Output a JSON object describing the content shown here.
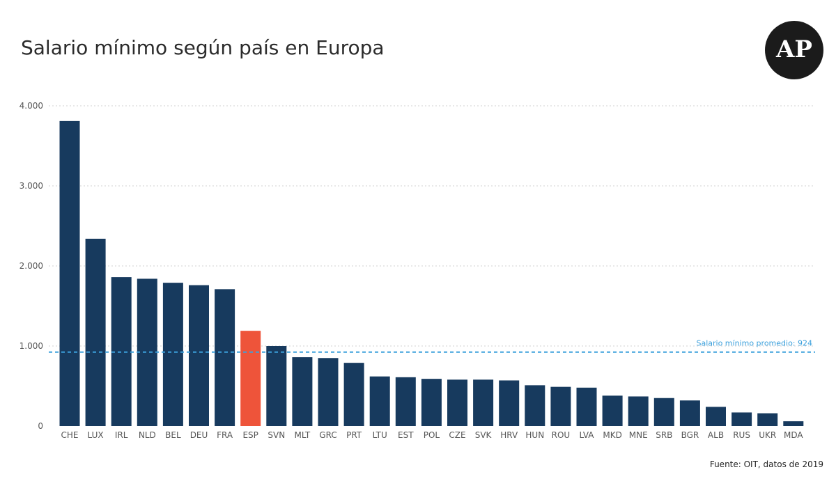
{
  "title": "Salario mínimo según país en Europa",
  "logo_text": "AP",
  "source": "Fuente: OIT, datos de 2019",
  "chart_data": {
    "type": "bar",
    "categories": [
      "CHE",
      "LUX",
      "IRL",
      "NLD",
      "BEL",
      "DEU",
      "FRA",
      "ESP",
      "SVN",
      "MLT",
      "GRC",
      "PRT",
      "LTU",
      "EST",
      "POL",
      "CZE",
      "SVK",
      "HRV",
      "HUN",
      "ROU",
      "LVA",
      "MKD",
      "MNE",
      "SRB",
      "BGR",
      "ALB",
      "RUS",
      "UKR",
      "MDA"
    ],
    "values": [
      3810,
      2340,
      1860,
      1840,
      1790,
      1760,
      1710,
      1190,
      1000,
      860,
      850,
      790,
      620,
      610,
      590,
      580,
      580,
      570,
      510,
      490,
      480,
      380,
      370,
      350,
      320,
      240,
      170,
      160,
      60
    ],
    "highlight": "ESP",
    "colors": {
      "bar": "#173a5e",
      "highlight": "#ee543a",
      "average": "#3ba0dc",
      "grid": "#d0d0d0"
    },
    "yticks": [
      "0",
      "1.000",
      "2.000",
      "3.000",
      "4.000"
    ],
    "ylim": [
      0,
      4000
    ],
    "grid": true,
    "average": {
      "value": 924,
      "label": "Salario mínimo promedio: 924"
    }
  }
}
